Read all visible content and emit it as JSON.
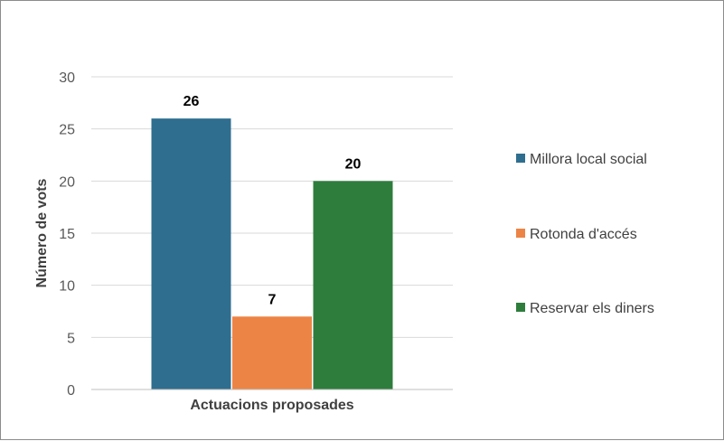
{
  "chart_data": {
    "type": "bar",
    "title": "",
    "xlabel": "Actuacions proposades",
    "ylabel": "Número de vots",
    "categories": [
      "Actuacions proposades"
    ],
    "series": [
      {
        "name": "Millora local social",
        "values": [
          26
        ],
        "color": "#2f6e8e"
      },
      {
        "name": "Rotonda d'accés",
        "values": [
          7
        ],
        "color": "#ec8446"
      },
      {
        "name": "Reservar els diners",
        "values": [
          20
        ],
        "color": "#2e7d3c"
      }
    ],
    "ylim": [
      0,
      30
    ],
    "yticks": [
      "0",
      "5",
      "10",
      "15",
      "20",
      "25",
      "30"
    ],
    "grid": true,
    "legend_position": "right",
    "data_labels": [
      "26",
      "7",
      "20"
    ]
  }
}
